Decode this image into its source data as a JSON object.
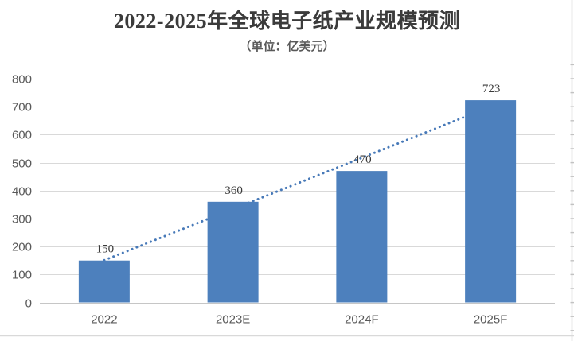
{
  "chart": {
    "title": "2022-2025年全球电子纸产业规模预测",
    "subtitle": "（单位：亿美元）"
  },
  "chart_data": {
    "type": "bar",
    "title": "2022-2025年全球电子纸产业规模预测",
    "subtitle": "（单位：亿美元）",
    "categories": [
      "2022",
      "2023E",
      "2024F",
      "2025F"
    ],
    "values": [
      150,
      360,
      470,
      723
    ],
    "data_labels": [
      "150",
      "360",
      "470",
      "723"
    ],
    "xlabel": "",
    "ylabel": "",
    "ylim": [
      0,
      800
    ],
    "yticks": [
      0,
      100,
      200,
      300,
      400,
      500,
      600,
      700,
      800
    ],
    "grid": true,
    "legend": false,
    "trendline": {
      "type": "linear",
      "style": "dotted",
      "start_value": 151,
      "end_value": 700,
      "note": "linear trendline drawn behind bars, hidden by last bar"
    },
    "colors": {
      "bar": "#4d80bd",
      "trendline": "#4779b8",
      "gridline": "#d9d9d9",
      "axis_line": "#c6c6c6",
      "frame_line": "#d9d9d9",
      "axis_text": "#595959",
      "data_label_text": "#3a3a3a",
      "title_text": "#3b3b3b",
      "background": "#ffffff"
    }
  }
}
